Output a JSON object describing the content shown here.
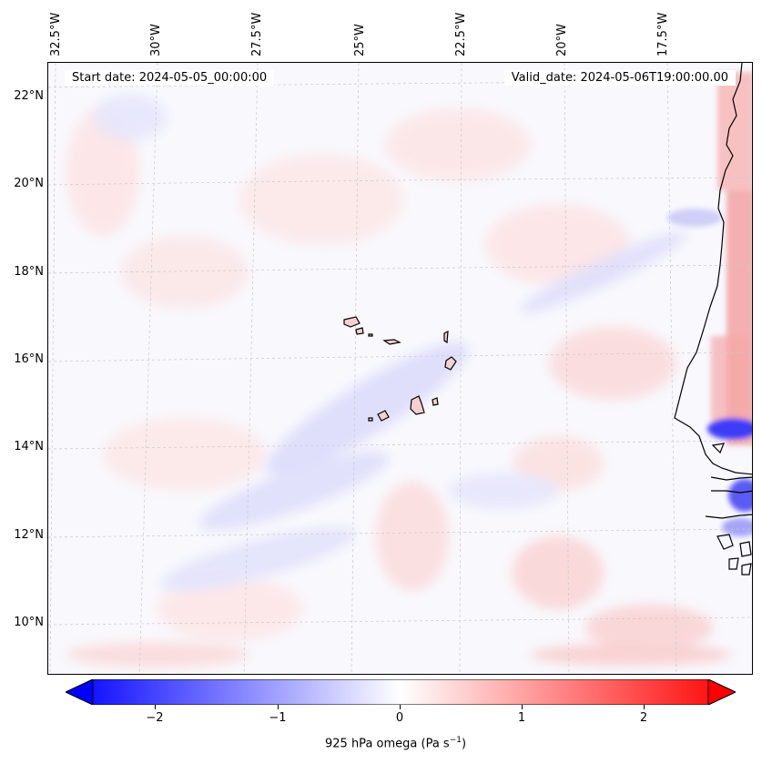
{
  "map": {
    "start_date": "Start date: 2024-05-05_00:00:00",
    "valid_date": "Valid_date: 2024-05-06T19:00:00.00",
    "lon_ticks": [
      "32.5°W",
      "30°W",
      "27.5°W",
      "25°W",
      "22.5°W",
      "20°W",
      "17.5°W"
    ],
    "lat_ticks": [
      "22°N",
      "20°N",
      "18°N",
      "16°N",
      "14°N",
      "12°N",
      "10°N"
    ],
    "field": "925 hPa omega",
    "region": "Cabo Verde / West African coast"
  },
  "colorbar": {
    "ticks": [
      "−2",
      "−1",
      "0",
      "1",
      "2"
    ],
    "title": "925 hPa omega (Pa s",
    "title_sup": "−1",
    "title_close": ")",
    "cmap": "bwr",
    "min_color": "#0000ff",
    "mid_color": "#ffffff",
    "max_color": "#ff0000",
    "extend": "both"
  }
}
